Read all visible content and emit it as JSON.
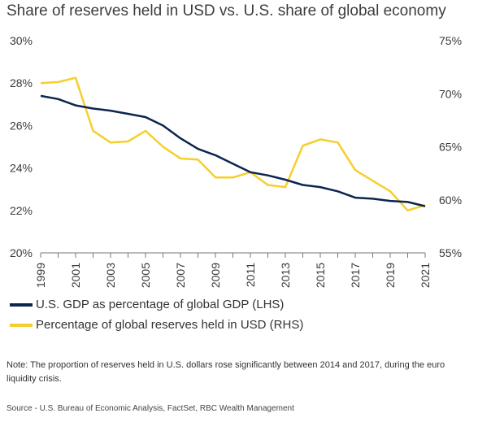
{
  "title": "Share of reserves held in USD vs. U.S. share of global economy",
  "legend": {
    "gdp_label": "U.S. GDP as percentage of global GDP (LHS)",
    "reserves_label": "Percentage of global reserves held in USD (RHS)"
  },
  "note": "Note: The proportion of reserves held in U.S. dollars rose significantly between 2014 and 2017, during the euro liquidity crisis.",
  "source": "Source - U.S. Bureau of Economic Analysis, FactSet, RBC Wealth Management",
  "colors": {
    "gdp": "#0b2550",
    "reserves": "#f5cf2c",
    "axis": "#777777"
  },
  "chart_data": {
    "type": "line",
    "title": "Share of reserves held in USD vs. U.S. share of global economy",
    "x": [
      1999,
      2000,
      2001,
      2002,
      2003,
      2004,
      2005,
      2006,
      2007,
      2008,
      2009,
      2010,
      2011,
      2012,
      2013,
      2014,
      2015,
      2016,
      2017,
      2018,
      2019,
      2020,
      2021
    ],
    "x_tick_labels": [
      "1999",
      "2001",
      "2003",
      "2005",
      "2007",
      "2009",
      "2011",
      "2013",
      "2015",
      "2017",
      "2019",
      "2021"
    ],
    "xlim": [
      1999,
      2021
    ],
    "y_left": {
      "ylim": [
        20,
        30
      ],
      "ticks": [
        20,
        22,
        24,
        26,
        28,
        30
      ],
      "tick_labels": [
        "20%",
        "22%",
        "24%",
        "26%",
        "28%",
        "30%"
      ]
    },
    "y_right": {
      "ylim": [
        55,
        75
      ],
      "ticks": [
        55,
        60,
        65,
        70,
        75
      ],
      "tick_labels": [
        "55%",
        "60%",
        "65%",
        "70%",
        "75%"
      ]
    },
    "grid": false,
    "legend_position": "bottom-left",
    "series": [
      {
        "name": "U.S. GDP as percentage of global GDP (LHS)",
        "axis": "left",
        "values": [
          27.4,
          27.25,
          26.95,
          26.8,
          26.7,
          26.55,
          26.4,
          26.0,
          25.4,
          24.9,
          24.6,
          24.2,
          23.8,
          23.65,
          23.45,
          23.2,
          23.1,
          22.9,
          22.6,
          22.55,
          22.45,
          22.4,
          22.2
        ]
      },
      {
        "name": "Percentage of global reserves held in USD (RHS)",
        "axis": "right",
        "values": [
          71.0,
          71.1,
          71.5,
          66.5,
          65.4,
          65.5,
          66.5,
          65.0,
          63.9,
          63.8,
          62.1,
          62.1,
          62.6,
          61.4,
          61.2,
          65.1,
          65.7,
          65.4,
          62.8,
          61.8,
          60.8,
          59.0,
          59.5
        ]
      }
    ]
  }
}
